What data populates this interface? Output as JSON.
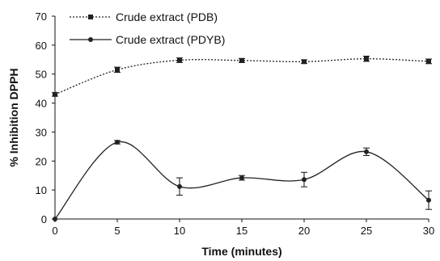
{
  "chart_data": {
    "type": "line",
    "title": "",
    "xlabel": "Time  (minutes)",
    "ylabel": "% Inhibition  DPPH",
    "x": [
      0,
      5,
      10,
      15,
      20,
      25,
      30
    ],
    "xlim": [
      0,
      30
    ],
    "ylim": [
      0,
      70
    ],
    "x_ticks": [
      "0",
      "5",
      "10",
      "15",
      "20",
      "25",
      "30"
    ],
    "y_ticks": [
      "0",
      "10",
      "20",
      "30",
      "40",
      "50",
      "60",
      "70"
    ],
    "grid": false,
    "legend_position": "top-left",
    "series": [
      {
        "name": "Crude extract (PDB)",
        "values": [
          43,
          51.5,
          54.8,
          54.7,
          54.3,
          55.3,
          54.4
        ],
        "errors": [
          0.6,
          0.9,
          0.8,
          0.7,
          0.6,
          0.9,
          0.8
        ],
        "line_style": "dotted",
        "marker": "square",
        "curve": "smooth",
        "color": "#222222"
      },
      {
        "name": "Crude extract (PDYB)",
        "values": [
          0,
          26.5,
          11.2,
          14.2,
          13.6,
          23.2,
          6.5
        ],
        "errors": [
          0,
          0.6,
          3,
          0.8,
          2.5,
          1.3,
          3.2
        ],
        "line_style": "solid",
        "marker": "circle",
        "curve": "smooth",
        "color": "#222222"
      }
    ]
  }
}
